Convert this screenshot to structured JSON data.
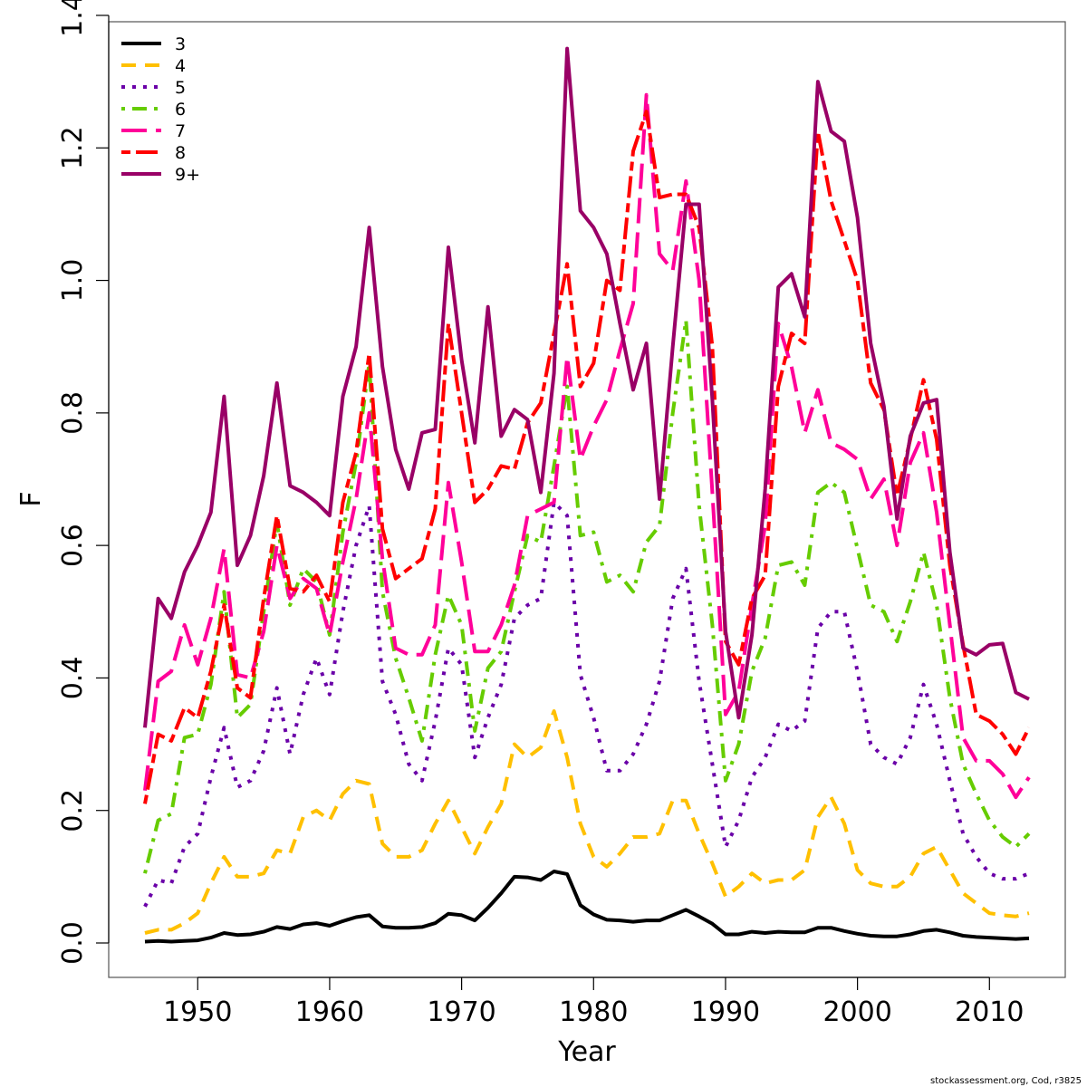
{
  "chart_data": {
    "type": "line",
    "title": "",
    "xlabel": "Year",
    "ylabel": "F",
    "xlim": [
      1946,
      2013
    ],
    "ylim": [
      0,
      1.4
    ],
    "xticks": [
      "1950",
      "1960",
      "1970",
      "1980",
      "1990",
      "2000",
      "2010"
    ],
    "yticks": [
      "0.0",
      "0.2",
      "0.4",
      "0.6",
      "0.8",
      "1.0",
      "1.2",
      "1.4"
    ],
    "grid": false,
    "legend_position": "top-left",
    "x": [
      1946,
      1947,
      1948,
      1949,
      1950,
      1951,
      1952,
      1953,
      1954,
      1955,
      1956,
      1957,
      1958,
      1959,
      1960,
      1961,
      1962,
      1963,
      1964,
      1965,
      1966,
      1967,
      1968,
      1969,
      1970,
      1971,
      1972,
      1973,
      1974,
      1975,
      1976,
      1977,
      1978,
      1979,
      1980,
      1981,
      1982,
      1983,
      1984,
      1985,
      1986,
      1987,
      1988,
      1989,
      1990,
      1991,
      1992,
      1993,
      1994,
      1995,
      1996,
      1997,
      1998,
      1999,
      2000,
      2001,
      2002,
      2003,
      2004,
      2005,
      2006,
      2007,
      2008,
      2009,
      2010,
      2011,
      2012,
      2013
    ],
    "series": [
      {
        "name": "3",
        "color": "#000000",
        "dash": "solid",
        "values": [
          0.002,
          0.003,
          0.002,
          0.003,
          0.004,
          0.008,
          0.015,
          0.012,
          0.013,
          0.017,
          0.024,
          0.021,
          0.028,
          0.03,
          0.026,
          0.033,
          0.039,
          0.042,
          0.025,
          0.023,
          0.023,
          0.024,
          0.03,
          0.044,
          0.042,
          0.034,
          0.053,
          0.075,
          0.1,
          0.099,
          0.095,
          0.108,
          0.104,
          0.057,
          0.043,
          0.035,
          0.034,
          0.032,
          0.034,
          0.034,
          0.042,
          0.05,
          0.04,
          0.029,
          0.013,
          0.013,
          0.017,
          0.015,
          0.017,
          0.016,
          0.016,
          0.023,
          0.023,
          0.018,
          0.014,
          0.011,
          0.01,
          0.01,
          0.013,
          0.018,
          0.02,
          0.016,
          0.011,
          0.009,
          0.008,
          0.007,
          0.006,
          0.007
        ]
      },
      {
        "name": "4",
        "color": "#FFC000",
        "dash": "dashed",
        "values": [
          0.015,
          0.02,
          0.02,
          0.03,
          0.045,
          0.09,
          0.13,
          0.1,
          0.1,
          0.105,
          0.14,
          0.135,
          0.19,
          0.2,
          0.185,
          0.225,
          0.245,
          0.24,
          0.15,
          0.13,
          0.13,
          0.14,
          0.18,
          0.215,
          0.175,
          0.135,
          0.175,
          0.21,
          0.3,
          0.28,
          0.295,
          0.35,
          0.28,
          0.18,
          0.13,
          0.115,
          0.135,
          0.16,
          0.16,
          0.165,
          0.215,
          0.215,
          0.165,
          0.12,
          0.07,
          0.085,
          0.105,
          0.09,
          0.095,
          0.095,
          0.11,
          0.19,
          0.22,
          0.18,
          0.11,
          0.09,
          0.085,
          0.085,
          0.1,
          0.135,
          0.145,
          0.11,
          0.075,
          0.06,
          0.045,
          0.042,
          0.04,
          0.045
        ]
      },
      {
        "name": "5",
        "color": "#6A00A8",
        "dash": "dotted",
        "values": [
          0.055,
          0.095,
          0.09,
          0.145,
          0.165,
          0.25,
          0.325,
          0.235,
          0.245,
          0.29,
          0.385,
          0.285,
          0.375,
          0.43,
          0.375,
          0.5,
          0.6,
          0.66,
          0.395,
          0.345,
          0.27,
          0.245,
          0.335,
          0.445,
          0.42,
          0.28,
          0.34,
          0.39,
          0.49,
          0.51,
          0.52,
          0.665,
          0.645,
          0.405,
          0.34,
          0.26,
          0.26,
          0.285,
          0.33,
          0.395,
          0.52,
          0.565,
          0.395,
          0.27,
          0.145,
          0.185,
          0.25,
          0.28,
          0.33,
          0.32,
          0.335,
          0.475,
          0.5,
          0.5,
          0.41,
          0.3,
          0.28,
          0.27,
          0.31,
          0.39,
          0.33,
          0.245,
          0.165,
          0.13,
          0.105,
          0.097,
          0.097,
          0.105
        ]
      },
      {
        "name": "6",
        "color": "#66CC00",
        "dash": "dotdash",
        "values": [
          0.105,
          0.185,
          0.195,
          0.31,
          0.315,
          0.39,
          0.53,
          0.34,
          0.36,
          0.5,
          0.635,
          0.51,
          0.565,
          0.545,
          0.465,
          0.62,
          0.725,
          0.875,
          0.53,
          0.43,
          0.37,
          0.305,
          0.435,
          0.525,
          0.48,
          0.32,
          0.415,
          0.44,
          0.53,
          0.615,
          0.605,
          0.72,
          0.84,
          0.615,
          0.62,
          0.545,
          0.555,
          0.53,
          0.605,
          0.63,
          0.8,
          0.94,
          0.66,
          0.48,
          0.245,
          0.3,
          0.41,
          0.46,
          0.57,
          0.575,
          0.54,
          0.68,
          0.695,
          0.68,
          0.595,
          0.51,
          0.5,
          0.455,
          0.515,
          0.59,
          0.51,
          0.37,
          0.27,
          0.225,
          0.185,
          0.16,
          0.145,
          0.165
        ]
      },
      {
        "name": "7",
        "color": "#FF0099",
        "dash": "longdash",
        "values": [
          0.23,
          0.395,
          0.41,
          0.48,
          0.42,
          0.49,
          0.595,
          0.405,
          0.4,
          0.47,
          0.6,
          0.52,
          0.55,
          0.535,
          0.465,
          0.575,
          0.67,
          0.8,
          0.58,
          0.445,
          0.435,
          0.435,
          0.48,
          0.695,
          0.575,
          0.44,
          0.44,
          0.48,
          0.54,
          0.645,
          0.655,
          0.665,
          0.885,
          0.73,
          0.78,
          0.82,
          0.895,
          0.965,
          1.28,
          1.04,
          1.015,
          1.15,
          1.0,
          0.68,
          0.345,
          0.38,
          0.51,
          0.63,
          0.935,
          0.87,
          0.77,
          0.835,
          0.755,
          0.745,
          0.73,
          0.67,
          0.7,
          0.6,
          0.725,
          0.77,
          0.65,
          0.48,
          0.31,
          0.275,
          0.275,
          0.255,
          0.22,
          0.25
        ]
      },
      {
        "name": "8",
        "color": "#FF0000",
        "dash": "twodash",
        "values": [
          0.21,
          0.315,
          0.305,
          0.355,
          0.34,
          0.41,
          0.51,
          0.385,
          0.37,
          0.52,
          0.645,
          0.535,
          0.53,
          0.555,
          0.515,
          0.665,
          0.74,
          0.89,
          0.625,
          0.55,
          0.565,
          0.58,
          0.655,
          0.935,
          0.8,
          0.665,
          0.685,
          0.72,
          0.715,
          0.785,
          0.815,
          0.92,
          1.025,
          0.84,
          0.875,
          1.0,
          0.985,
          1.195,
          1.255,
          1.125,
          1.13,
          1.13,
          1.08,
          0.9,
          0.455,
          0.42,
          0.52,
          0.555,
          0.84,
          0.92,
          0.905,
          1.225,
          1.12,
          1.06,
          1.0,
          0.845,
          0.805,
          0.675,
          0.76,
          0.85,
          0.76,
          0.57,
          0.45,
          0.345,
          0.335,
          0.315,
          0.285,
          0.325
        ]
      },
      {
        "name": "9+",
        "color": "#990066",
        "dash": "solid",
        "values": [
          0.325,
          0.52,
          0.49,
          0.56,
          0.6,
          0.65,
          0.825,
          0.57,
          0.615,
          0.705,
          0.845,
          0.69,
          0.68,
          0.665,
          0.645,
          0.825,
          0.9,
          1.08,
          0.87,
          0.745,
          0.685,
          0.77,
          0.775,
          1.05,
          0.88,
          0.755,
          0.96,
          0.765,
          0.805,
          0.79,
          0.68,
          0.86,
          1.35,
          1.105,
          1.08,
          1.04,
          0.935,
          0.835,
          0.905,
          0.67,
          0.9,
          1.115,
          1.115,
          0.82,
          0.47,
          0.34,
          0.465,
          0.685,
          0.99,
          1.01,
          0.945,
          1.3,
          1.225,
          1.21,
          1.095,
          0.905,
          0.81,
          0.64,
          0.765,
          0.815,
          0.82,
          0.59,
          0.445,
          0.435,
          0.45,
          0.452,
          0.378,
          0.368
        ]
      }
    ]
  },
  "credit": "stockassessment.org, Cod, r3825"
}
